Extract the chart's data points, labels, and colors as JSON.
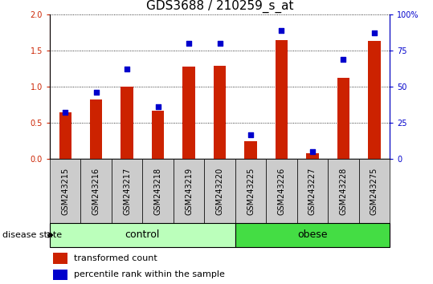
{
  "title": "GDS3688 / 210259_s_at",
  "samples": [
    "GSM243215",
    "GSM243216",
    "GSM243217",
    "GSM243218",
    "GSM243219",
    "GSM243220",
    "GSM243225",
    "GSM243226",
    "GSM243227",
    "GSM243228",
    "GSM243275"
  ],
  "transformed_count": [
    0.65,
    0.82,
    1.0,
    0.67,
    1.28,
    1.29,
    0.25,
    1.64,
    0.08,
    1.12,
    1.63
  ],
  "percentile_rank": [
    32,
    46,
    62,
    36,
    80,
    80,
    17,
    89,
    5,
    69,
    87
  ],
  "groups": [
    {
      "label": "control",
      "start": 0,
      "end": 6,
      "color": "#bbffbb"
    },
    {
      "label": "obese",
      "start": 6,
      "end": 11,
      "color": "#44dd44"
    }
  ],
  "ylim_left": [
    0,
    2
  ],
  "ylim_right": [
    0,
    100
  ],
  "yticks_left": [
    0,
    0.5,
    1.0,
    1.5,
    2.0
  ],
  "yticks_right": [
    0,
    25,
    50,
    75,
    100
  ],
  "bar_color": "#cc2200",
  "dot_color": "#0000cc",
  "dot_size": 18,
  "title_fontsize": 11,
  "tick_label_fontsize": 7,
  "legend_fontsize": 8,
  "group_label_fontsize": 9,
  "disease_state_fontsize": 8,
  "left_axis_color": "#cc2200",
  "right_axis_color": "#0000cc",
  "background_color": "#ffffff",
  "tick_area_color": "#cccccc"
}
